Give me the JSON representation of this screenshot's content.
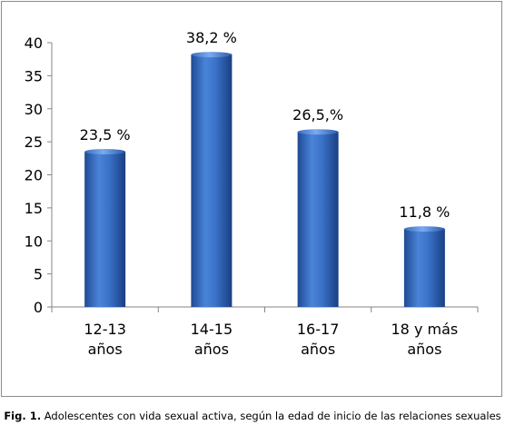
{
  "chart_data": {
    "type": "bar",
    "categories": [
      [
        "12-13",
        "años"
      ],
      [
        "14-15",
        "años"
      ],
      [
        "16-17",
        "años"
      ],
      [
        "18 y más",
        "años"
      ]
    ],
    "values": [
      23.5,
      38.2,
      26.5,
      11.8
    ],
    "data_labels": [
      "23,5 %",
      "38,2 %",
      "26,5,%",
      "11,8 %"
    ],
    "y_ticks": [
      "0",
      "5",
      "10",
      "15",
      "20",
      "25",
      "30",
      "35",
      "40"
    ],
    "ylim": [
      0,
      40
    ],
    "grid": false,
    "legend": "none",
    "bar_color": "#2f66b8",
    "bar_color_light": "#6a9ce6",
    "bar_color_dark": "#1a3f82"
  },
  "caption": {
    "prefix": "Fig. 1.",
    "text": " Adolescentes con vida sexual activa, según la edad de inicio de las relaciones sexuales"
  }
}
